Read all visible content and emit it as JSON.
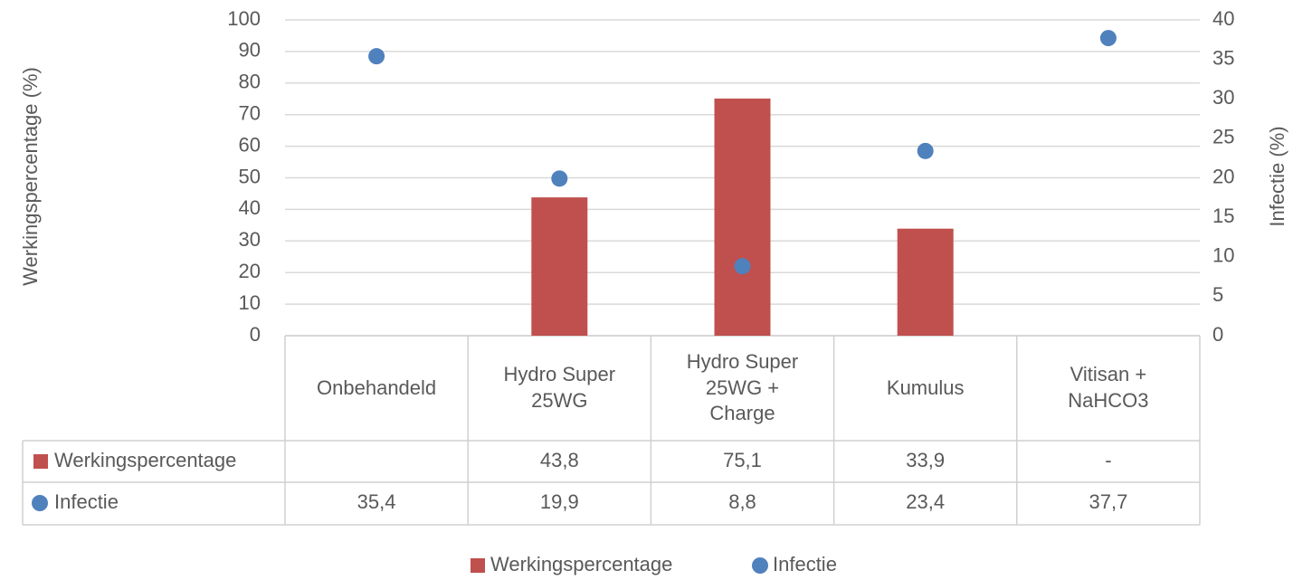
{
  "chart_data": {
    "type": "bar",
    "categories": [
      "Onbehandeld",
      "Hydro Super 25WG",
      "Hydro Super 25WG + Charge",
      "Kumulus",
      "Vitisan + NaHCO3"
    ],
    "ylabel": "Werkingspercentage (%)",
    "y2label": "Infectie (%)",
    "ylim": [
      0,
      100
    ],
    "yticks": [
      0,
      10,
      20,
      30,
      40,
      50,
      60,
      70,
      80,
      90,
      100
    ],
    "y2lim": [
      0,
      40
    ],
    "y2ticks": [
      0,
      5,
      10,
      15,
      20,
      25,
      30,
      35,
      40
    ],
    "grid": true,
    "legend": "bottom",
    "series": [
      {
        "name": "Werkingspercentage",
        "type": "bar",
        "color": "#c0504d",
        "values": [
          null,
          43.8,
          75.1,
          33.9,
          null
        ],
        "value_labels": [
          null,
          "43,8",
          "75,1",
          "33,9",
          "-"
        ]
      },
      {
        "name": "Infectie",
        "type": "scatter",
        "axis": "y2",
        "color": "#4f81bd",
        "values": [
          35.4,
          19.9,
          8.8,
          23.4,
          37.7
        ],
        "value_labels": [
          "35,4",
          "19,9",
          "8,8",
          "23,4",
          "37,7"
        ]
      }
    ]
  }
}
